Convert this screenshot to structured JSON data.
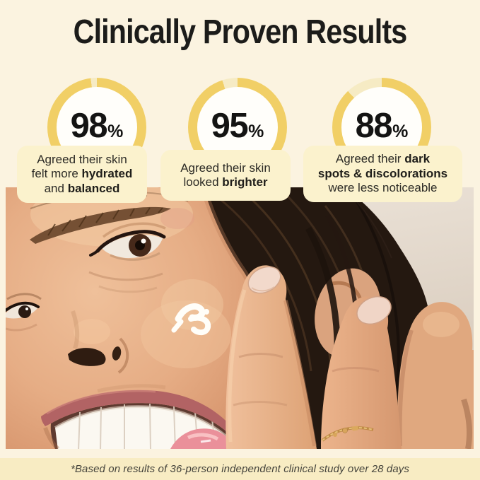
{
  "title": "Clinically Proven Results",
  "stats": [
    {
      "pct": 98,
      "value": "98",
      "unit": "%",
      "lines": [
        [
          {
            "t": "Agreed their skin",
            "b": 0
          }
        ],
        [
          {
            "t": "felt more ",
            "b": 0
          },
          {
            "t": "hydrated",
            "b": 1
          }
        ],
        [
          {
            "t": "and ",
            "b": 0
          },
          {
            "t": "balanced",
            "b": 1
          }
        ]
      ]
    },
    {
      "pct": 95,
      "value": "95",
      "unit": "%",
      "lines": [
        [
          {
            "t": "Agreed their skin",
            "b": 0
          }
        ],
        [
          {
            "t": "looked ",
            "b": 0
          },
          {
            "t": "brighter",
            "b": 1
          }
        ]
      ]
    },
    {
      "pct": 88,
      "value": "88",
      "unit": "%",
      "lines": [
        [
          {
            "t": "Agreed their ",
            "b": 0
          },
          {
            "t": "dark",
            "b": 1
          }
        ],
        [
          {
            "t": "spots & discolorations",
            "b": 1
          }
        ],
        [
          {
            "t": "were less noticeable",
            "b": 0
          }
        ]
      ]
    }
  ],
  "footnote": "*Based on results of 36-person independent clinical study over 28 days",
  "colors": {
    "page_bg": "#fbf3e0",
    "title_text": "#1c1c1a",
    "ring_yellow": "#f1cf66",
    "ring_gap": "#f6ebc4",
    "circle_fill": "#fffefa",
    "stat_number": "#141413",
    "card_bg": "#fbf2cd",
    "card_text": "#2b2a25",
    "footer_band": "#f8ecc3",
    "footer_text": "#45443c",
    "photo_bg": "#ded3c6"
  }
}
